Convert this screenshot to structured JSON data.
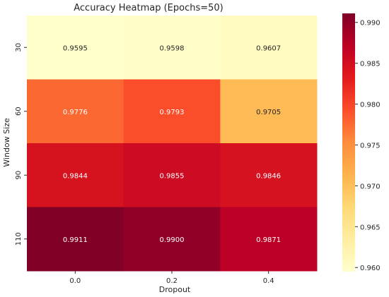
{
  "chart_data": {
    "type": "heatmap",
    "title": "Accuracy Heatmap (Epochs=50)",
    "xlabel": "Dropout",
    "ylabel": "Window Size",
    "x_categories": [
      "0.0",
      "0.2",
      "0.4"
    ],
    "y_categories": [
      "30",
      "60",
      "90",
      "110"
    ],
    "values": [
      [
        0.9595,
        0.9598,
        0.9607
      ],
      [
        0.9776,
        0.9793,
        0.9705
      ],
      [
        0.9844,
        0.9855,
        0.9846
      ],
      [
        0.9911,
        0.99,
        0.9871
      ]
    ],
    "value_labels": [
      [
        "0.9595",
        "0.9598",
        "0.9607"
      ],
      [
        "0.9776",
        "0.9793",
        "0.9705"
      ],
      [
        "0.9844",
        "0.9855",
        "0.9846"
      ],
      [
        "0.9911",
        "0.9900",
        "0.9871"
      ]
    ],
    "colormap": "YlOrRd",
    "colorbar": {
      "range": [
        0.9595,
        0.9911
      ],
      "ticks": [
        0.96,
        0.965,
        0.97,
        0.975,
        0.98,
        0.985,
        0.99
      ],
      "tick_labels": [
        "0.960",
        "0.965",
        "0.970",
        "0.975",
        "0.980",
        "0.985",
        "0.990"
      ]
    },
    "annotations": true,
    "grid": false,
    "colors": {
      "text_dark": "#262626",
      "text_light": "#ffffff",
      "axis": "#262626"
    }
  }
}
